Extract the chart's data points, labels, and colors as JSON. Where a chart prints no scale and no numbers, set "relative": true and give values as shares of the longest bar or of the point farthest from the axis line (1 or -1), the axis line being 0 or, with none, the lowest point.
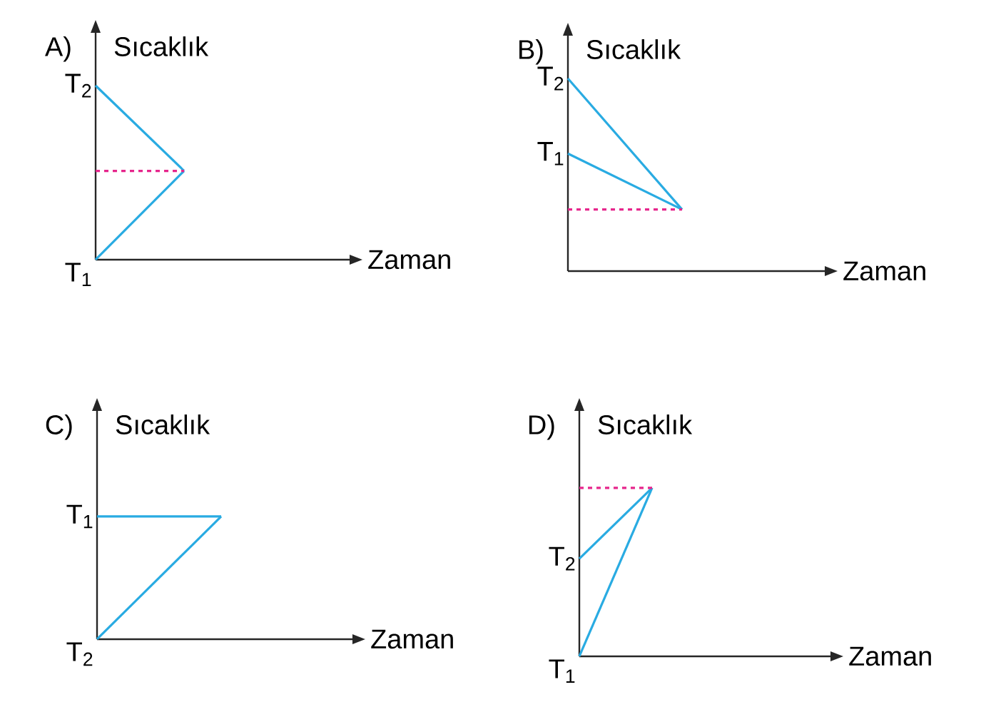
{
  "chart_data": [
    {
      "type": "line",
      "title": "A)",
      "xlabel": "Zaman",
      "ylabel": "Sıcaklık",
      "relative": true,
      "categories": [
        null,
        null
      ],
      "marker": "none",
      "series": [
        {
          "color": "#29abe2",
          "values": [
            1,
            0.51
          ]
        },
        {
          "color": "#29abe2",
          "values": [
            0,
            0.51
          ]
        },
        {
          "color": "#e6268c",
          "line_style": "dashed",
          "values": [
            0.51,
            0.51
          ]
        }
      ],
      "annotations": [
        "T$_{2}$",
        "T$_{1}$"
      ]
    },
    {
      "type": "line",
      "title": "B)",
      "xlabel": "Zaman",
      "ylabel": "Sıcaklık",
      "relative": true,
      "categories": [
        null,
        null
      ],
      "marker": "none",
      "series": [
        {
          "color": "#29abe2",
          "values": [
            1,
            0.32
          ]
        },
        {
          "color": "#29abe2",
          "values": [
            0.61,
            0.32
          ]
        },
        {
          "color": "#e6268c",
          "line_style": "dashed",
          "values": [
            0.32,
            0.32
          ]
        }
      ],
      "annotations": [
        "T$_{2}$",
        "T$_{1}$"
      ]
    },
    {
      "type": "line",
      "title": "C)",
      "xlabel": "Zaman",
      "ylabel": "Sıcaklık",
      "relative": true,
      "categories": [
        null,
        null
      ],
      "marker": "none",
      "series": [
        {
          "color": "#29abe2",
          "values": [
            1,
            1
          ]
        },
        {
          "color": "#29abe2",
          "values": [
            0,
            1
          ]
        }
      ],
      "annotations": [
        "T$_{1}$",
        "T$_{2}$"
      ]
    },
    {
      "type": "line",
      "title": "D)",
      "xlabel": "Zaman",
      "ylabel": "Sıcaklık",
      "relative": true,
      "categories": [
        null,
        null
      ],
      "marker": "none",
      "series": [
        {
          "color": "#29abe2",
          "values": [
            0.58,
            1
          ]
        },
        {
          "color": "#29abe2",
          "values": [
            0,
            1
          ]
        },
        {
          "color": "#e6268c",
          "line_style": "dashed",
          "values": [
            1,
            1
          ]
        }
      ],
      "annotations": [
        "T$_{2}$",
        "T$_{1}$"
      ]
    }
  ]
}
